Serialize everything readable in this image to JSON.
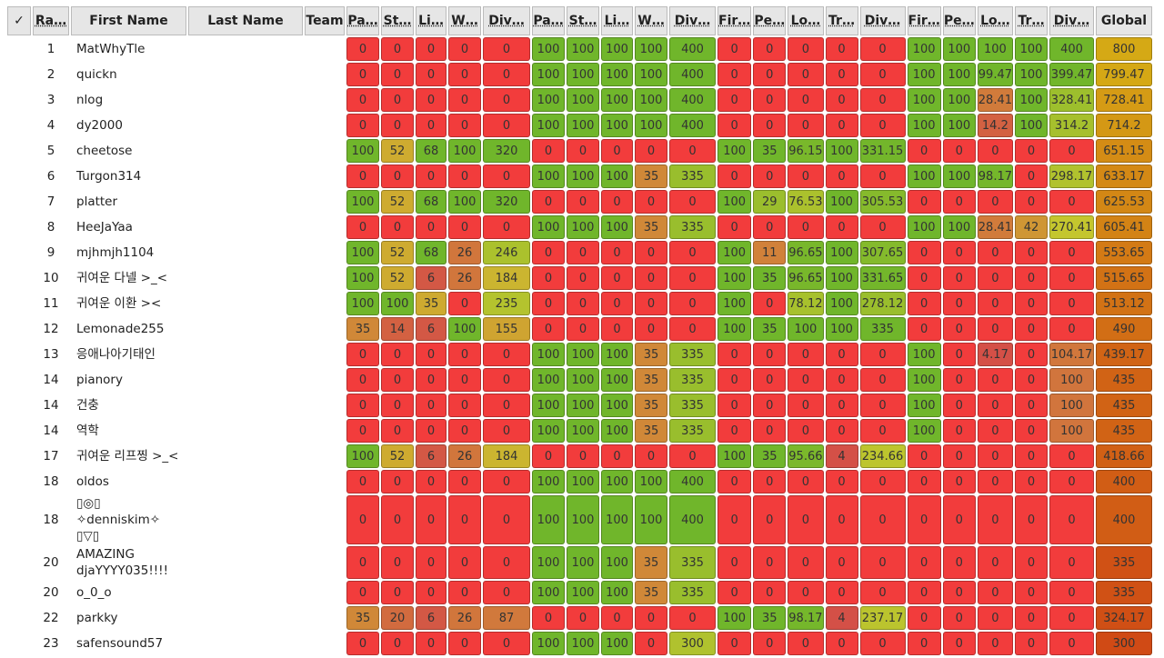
{
  "header": {
    "columns": [
      "✓",
      "Ra…",
      "First Name",
      "Last Name",
      "Team",
      "Pa…",
      "St…",
      "Li…",
      "W…",
      "Div…",
      "Pa…",
      "St…",
      "Li…",
      "W…",
      "Div…",
      "Fir…",
      "Pe…",
      "Lo…",
      "Tr…",
      "Div…",
      "Fir…",
      "Pe…",
      "Lo…",
      "Tr…",
      "Div…",
      "Global"
    ]
  },
  "table": {
    "rows": [
      {
        "rank": 1,
        "first_name": "MatWhyTle",
        "scores": [
          0,
          0,
          0,
          0,
          0,
          100,
          100,
          100,
          100,
          400,
          0,
          0,
          0,
          0,
          0,
          100,
          100,
          100,
          100,
          400,
          800
        ]
      },
      {
        "rank": 2,
        "first_name": "quickn",
        "scores": [
          0,
          0,
          0,
          0,
          0,
          100,
          100,
          100,
          100,
          400,
          0,
          0,
          0,
          0,
          0,
          100,
          100,
          99.47,
          100,
          399.47,
          799.47
        ]
      },
      {
        "rank": 3,
        "first_name": "nlog",
        "scores": [
          0,
          0,
          0,
          0,
          0,
          100,
          100,
          100,
          100,
          400,
          0,
          0,
          0,
          0,
          0,
          100,
          100,
          28.41,
          100,
          328.41,
          728.41
        ]
      },
      {
        "rank": 4,
        "first_name": "dy2000",
        "scores": [
          0,
          0,
          0,
          0,
          0,
          100,
          100,
          100,
          100,
          400,
          0,
          0,
          0,
          0,
          0,
          100,
          100,
          14.2,
          100,
          314.2,
          714.2
        ]
      },
      {
        "rank": 5,
        "first_name": "cheetose",
        "scores": [
          100,
          52,
          68,
          100,
          320,
          0,
          0,
          0,
          0,
          0,
          100,
          35,
          96.15,
          100,
          331.15,
          0,
          0,
          0,
          0,
          0,
          651.15
        ]
      },
      {
        "rank": 6,
        "first_name": "Turgon314",
        "scores": [
          0,
          0,
          0,
          0,
          0,
          100,
          100,
          100,
          35,
          335,
          0,
          0,
          0,
          0,
          0,
          100,
          100,
          98.17,
          0,
          298.17,
          633.17
        ]
      },
      {
        "rank": 7,
        "first_name": "platter",
        "scores": [
          100,
          52,
          68,
          100,
          320,
          0,
          0,
          0,
          0,
          0,
          100,
          29,
          76.53,
          100,
          305.53,
          0,
          0,
          0,
          0,
          0,
          625.53
        ]
      },
      {
        "rank": 8,
        "first_name": "HeeJaYaa",
        "scores": [
          0,
          0,
          0,
          0,
          0,
          100,
          100,
          100,
          35,
          335,
          0,
          0,
          0,
          0,
          0,
          100,
          100,
          28.41,
          42,
          270.41,
          605.41
        ]
      },
      {
        "rank": 9,
        "first_name": "mjhmjh1104",
        "scores": [
          100,
          52,
          68,
          26,
          246,
          0,
          0,
          0,
          0,
          0,
          100,
          11,
          96.65,
          100,
          307.65,
          0,
          0,
          0,
          0,
          0,
          553.65
        ]
      },
      {
        "rank": 10,
        "first_name": "귀여운 다넬 >_<",
        "scores": [
          100,
          52,
          6,
          26,
          184,
          0,
          0,
          0,
          0,
          0,
          100,
          35,
          96.65,
          100,
          331.65,
          0,
          0,
          0,
          0,
          0,
          515.65
        ]
      },
      {
        "rank": 11,
        "first_name": "귀여운 이환 ><",
        "scores": [
          100,
          100,
          35,
          0,
          235,
          0,
          0,
          0,
          0,
          0,
          100,
          0,
          78.12,
          100,
          278.12,
          0,
          0,
          0,
          0,
          0,
          513.12
        ]
      },
      {
        "rank": 12,
        "first_name": "Lemonade255",
        "scores": [
          35,
          14,
          6,
          100,
          155,
          0,
          0,
          0,
          0,
          0,
          100,
          35,
          100,
          100,
          335,
          0,
          0,
          0,
          0,
          0,
          490
        ]
      },
      {
        "rank": 13,
        "first_name": "응애나아기태인",
        "scores": [
          0,
          0,
          0,
          0,
          0,
          100,
          100,
          100,
          35,
          335,
          0,
          0,
          0,
          0,
          0,
          100,
          0,
          4.17,
          0,
          104.17,
          439.17
        ]
      },
      {
        "rank": 14,
        "first_name": "pianory",
        "scores": [
          0,
          0,
          0,
          0,
          0,
          100,
          100,
          100,
          35,
          335,
          0,
          0,
          0,
          0,
          0,
          100,
          0,
          0,
          0,
          100,
          435
        ]
      },
      {
        "rank": 14,
        "first_name": "건충",
        "scores": [
          0,
          0,
          0,
          0,
          0,
          100,
          100,
          100,
          35,
          335,
          0,
          0,
          0,
          0,
          0,
          100,
          0,
          0,
          0,
          100,
          435
        ]
      },
      {
        "rank": 14,
        "first_name": "역학",
        "scores": [
          0,
          0,
          0,
          0,
          0,
          100,
          100,
          100,
          35,
          335,
          0,
          0,
          0,
          0,
          0,
          100,
          0,
          0,
          0,
          100,
          435
        ]
      },
      {
        "rank": 17,
        "first_name": "귀여운 리프찡 >_<",
        "scores": [
          100,
          52,
          6,
          26,
          184,
          0,
          0,
          0,
          0,
          0,
          100,
          35,
          95.66,
          4,
          234.66,
          0,
          0,
          0,
          0,
          0,
          418.66
        ]
      },
      {
        "rank": 18,
        "first_name": "oldos",
        "scores": [
          0,
          0,
          0,
          0,
          0,
          100,
          100,
          100,
          100,
          400,
          0,
          0,
          0,
          0,
          0,
          0,
          0,
          0,
          0,
          0,
          400
        ]
      },
      {
        "rank": 18,
        "first_name": "▯◎▯ ✧denniskim✧ ▯▽▯",
        "scores": [
          0,
          0,
          0,
          0,
          0,
          100,
          100,
          100,
          100,
          400,
          0,
          0,
          0,
          0,
          0,
          0,
          0,
          0,
          0,
          0,
          400
        ]
      },
      {
        "rank": 20,
        "first_name": "AMAZING djaYYYY035!!!!",
        "scores": [
          0,
          0,
          0,
          0,
          0,
          100,
          100,
          100,
          35,
          335,
          0,
          0,
          0,
          0,
          0,
          0,
          0,
          0,
          0,
          0,
          335
        ]
      },
      {
        "rank": 20,
        "first_name": "o_0_o",
        "scores": [
          0,
          0,
          0,
          0,
          0,
          100,
          100,
          100,
          35,
          335,
          0,
          0,
          0,
          0,
          0,
          0,
          0,
          0,
          0,
          0,
          335
        ]
      },
      {
        "rank": 22,
        "first_name": "parkky",
        "scores": [
          35,
          20,
          6,
          26,
          87,
          0,
          0,
          0,
          0,
          0,
          100,
          35,
          98.17,
          4,
          237.17,
          0,
          0,
          0,
          0,
          0,
          324.17
        ]
      },
      {
        "rank": 23,
        "first_name": "safensound57",
        "scores": [
          0,
          0,
          0,
          0,
          0,
          100,
          100,
          100,
          0,
          300,
          0,
          0,
          0,
          0,
          0,
          0,
          0,
          0,
          0,
          0,
          300
        ]
      }
    ]
  }
}
